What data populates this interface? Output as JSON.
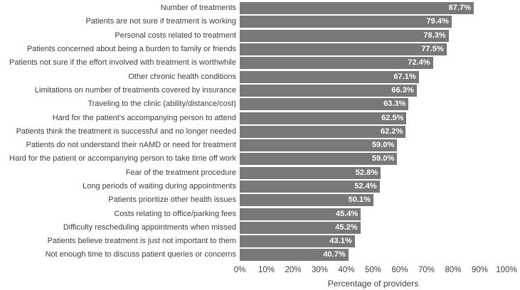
{
  "chart_data": {
    "type": "bar",
    "orientation": "horizontal",
    "title": "",
    "xlabel": "Percentage of providers",
    "ylabel": "",
    "xlim": [
      0,
      100
    ],
    "grid": false,
    "legend": null,
    "bar_color": "#787878",
    "value_label_color": "#ffffff",
    "categories": [
      "Number of treatments",
      "Patients are not sure if treatment is working",
      "Personal costs related to treatment",
      "Patients concerned about being a burden to family or friends",
      "Patients not sure if the effort involved with treatment is worthwhile",
      "Other chronic health conditions",
      "Limitations on number of treatments covered by insurance",
      "Traveling to the clinic (ability/distance/cost)",
      "Hard for the patient's accompanying person to attend",
      "Patients think the treatment is successful and no longer needed",
      "Patients do not understand their nAMD or need for treatment",
      "Hard for the patient or accompanying person to take time off work",
      "Fear of the treatment procedure",
      "Long periods of waiting during appointments",
      "Patients prioritize other health issues",
      "Costs relating to office/parking fees",
      "Difficulty rescheduling appointments when missed",
      "Patients believe treatment is just not important to them",
      "Not enough time to discuss patient queries or concerns"
    ],
    "values": [
      87.7,
      79.4,
      78.3,
      77.5,
      72.4,
      67.1,
      66.3,
      63.3,
      62.5,
      62.2,
      59.0,
      59.0,
      52.8,
      52.4,
      50.1,
      45.4,
      45.2,
      43.1,
      40.7
    ],
    "value_labels": [
      "87.7%",
      "79.4%",
      "78.3%",
      "77.5%",
      "72.4%",
      "67.1%",
      "66.3%",
      "63.3%",
      "62.5%",
      "62.2%",
      "59.0%",
      "59.0%",
      "52.8%",
      "52.4%",
      "50.1%",
      "45.4%",
      "45.2%",
      "43.1%",
      "40.7%"
    ],
    "x_ticks": [
      "0%",
      "10%",
      "20%",
      "30%",
      "40%",
      "50%",
      "60%",
      "70%",
      "80%",
      "90%",
      "100%"
    ]
  }
}
